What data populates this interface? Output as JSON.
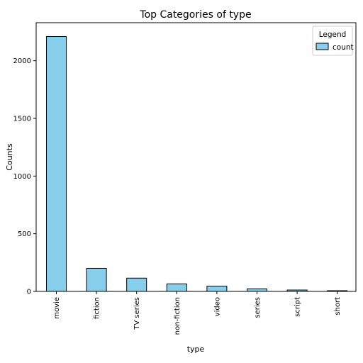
{
  "chart_data": {
    "type": "bar",
    "title": "Top Categories of type",
    "xlabel": "type",
    "ylabel": "Counts",
    "categories": [
      "movie",
      "fiction",
      "TV series",
      "non-fiction",
      "video",
      "series",
      "script",
      "short"
    ],
    "series": [
      {
        "name": "count",
        "values": [
          2210,
          200,
          115,
          65,
          45,
          22,
          12,
          6
        ]
      }
    ],
    "ylim": [
      0,
      2330
    ],
    "yticks": [
      0,
      500,
      1000,
      1500,
      2000
    ],
    "grid": false,
    "legend": {
      "title": "Legend",
      "placement": "top-right"
    },
    "colors": {
      "bar_fill": "#87ceeb",
      "bar_edge": "#000000"
    }
  }
}
